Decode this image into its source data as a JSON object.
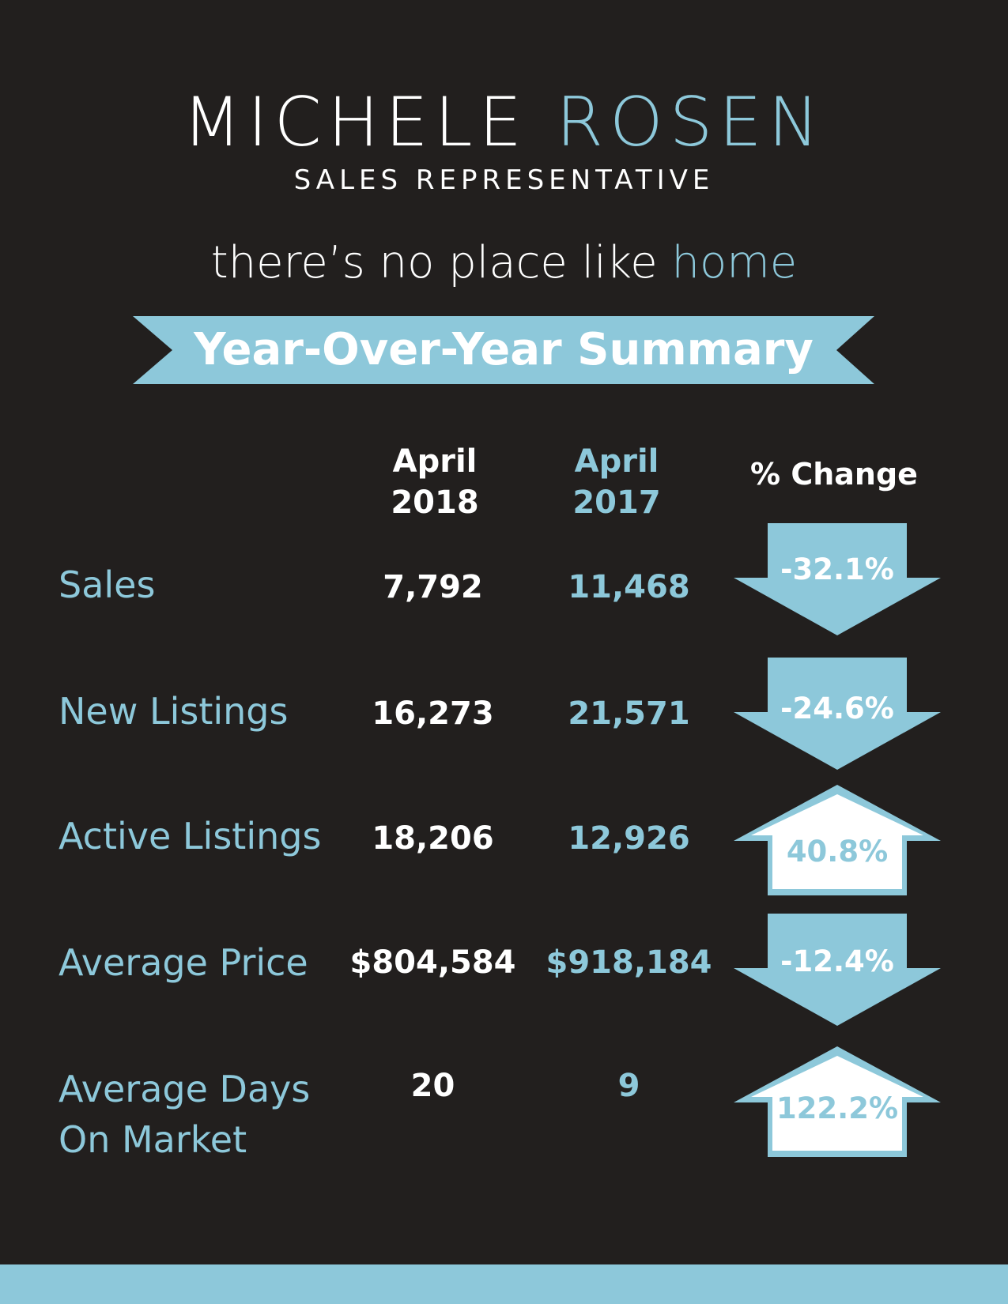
{
  "header": {
    "name_first": "MICHELE",
    "name_last": "ROSEN",
    "role": "SALES REPRESENTATIVE",
    "tagline_main": "there’s no place like",
    "tagline_accent": "home"
  },
  "banner": {
    "title": "Year-Over-Year Summary"
  },
  "table": {
    "columns": {
      "current": [
        "April",
        "2018"
      ],
      "previous": [
        "April",
        "2017"
      ],
      "change": "% Change"
    },
    "rows": [
      {
        "label": [
          "Sales"
        ],
        "current": "7,792",
        "previous": "11,468",
        "change": "-32.1%",
        "direction": "down"
      },
      {
        "label": [
          "New Listings"
        ],
        "current": "16,273",
        "previous": "21,571",
        "change": "-24.6%",
        "direction": "down"
      },
      {
        "label": [
          "Active Listings"
        ],
        "current": "18,206",
        "previous": "12,926",
        "change": "40.8%",
        "direction": "up"
      },
      {
        "label": [
          "Average Price"
        ],
        "current": "$804,584",
        "previous": "$918,184",
        "change": "-12.4%",
        "direction": "down"
      },
      {
        "label": [
          "Average Days",
          "On Market"
        ],
        "current": "20",
        "previous": "9",
        "change": "122.2%",
        "direction": "up"
      }
    ]
  },
  "colors": {
    "background": "#221f1e",
    "accent": "#8dc8da",
    "text": "#ffffff"
  },
  "icons": {
    "down": "down-arrow-icon",
    "up": "up-arrow-icon"
  }
}
